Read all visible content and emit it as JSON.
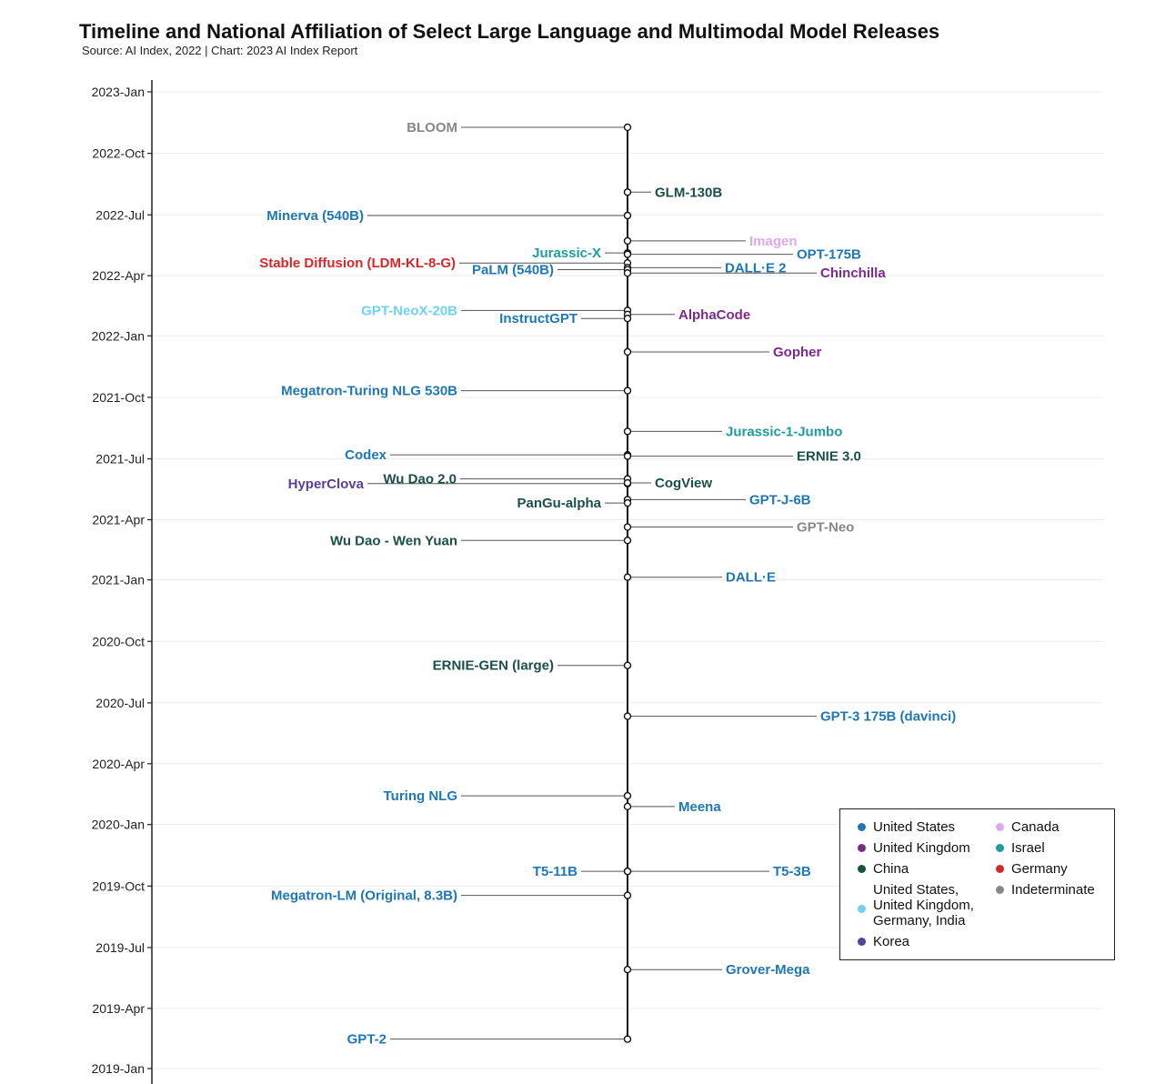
{
  "title": "Timeline and National Affiliation of Select Large Language and Multimodal Model Releases",
  "subtitle": "Source: AI Index, 2022 | Chart: 2023 AI Index Report",
  "colors": {
    "United States": "#1f77b4",
    "United Kingdom": "#7b2a8c",
    "China": "#1b4f4a",
    "Multinational": "#6fd3f0",
    "Korea": "#5a3f99",
    "Canada": "#e0a8ec",
    "Israel": "#1f9d9a",
    "Germany": "#d62728",
    "Indeterminate": "#888888"
  },
  "legend": {
    "items": [
      {
        "label": "United States",
        "color": "#1f77b4"
      },
      {
        "label": "United Kingdom",
        "color": "#7b2a8c"
      },
      {
        "label": "China",
        "color": "#1b4f4a"
      },
      {
        "label": "United States, United Kingdom, Germany, India",
        "color": "#6fd3f0"
      },
      {
        "label": "Korea",
        "color": "#5a3f99"
      },
      {
        "label": "Canada",
        "color": "#e0a8ec"
      },
      {
        "label": "Israel",
        "color": "#1f9d9a"
      },
      {
        "label": "Germany",
        "color": "#d62728"
      },
      {
        "label": "Indeterminate",
        "color": "#888888"
      }
    ]
  },
  "chart_data": {
    "type": "scatter",
    "title": "Timeline and National Affiliation of Select Large Language and Multimodal Model Releases",
    "subtitle": "Source: AI Index, 2022 | Chart: 2023 AI Index Report",
    "xlabel": "",
    "ylabel": "",
    "y_ticks": [
      "2023-Jan",
      "2022-Oct",
      "2022-Jul",
      "2022-Apr",
      "2022-Jan",
      "2021-Oct",
      "2021-Jul",
      "2021-Apr",
      "2021-Jan",
      "2020-Oct",
      "2020-Jul",
      "2020-Apr",
      "2020-Jan",
      "2019-Oct",
      "2019-Jul",
      "2019-Apr",
      "2019-Jan"
    ],
    "ylim": [
      "2019-01",
      "2023-01"
    ],
    "grid": true,
    "legend_position": "bottom-right",
    "points": [
      {
        "name": "BLOOM",
        "date": "2022-11-09",
        "country": "Indeterminate",
        "side": "left",
        "tail": 183
      },
      {
        "name": "GLM-130B",
        "date": "2022-08-04",
        "country": "China",
        "side": "right",
        "tail": 26
      },
      {
        "name": "Minerva (540B)",
        "date": "2022-06-30",
        "country": "United States",
        "side": "left",
        "tail": 286
      },
      {
        "name": "Imagen",
        "date": "2022-05-23",
        "country": "Canada",
        "side": "right",
        "tail": 130
      },
      {
        "name": "Jurassic-X",
        "date": "2022-05-05",
        "country": "Israel",
        "side": "left",
        "tail": 25
      },
      {
        "name": "OPT-175B",
        "date": "2022-05-03",
        "country": "United States",
        "side": "right",
        "tail": 182
      },
      {
        "name": "Stable Diffusion (LDM-KL-8-G)",
        "date": "2022-04-20",
        "country": "Germany",
        "side": "left",
        "tail": 185
      },
      {
        "name": "DALL·E 2",
        "date": "2022-04-13",
        "country": "United States",
        "side": "right",
        "tail": 103
      },
      {
        "name": "PaLM (540B)",
        "date": "2022-04-10",
        "country": "United States",
        "side": "left",
        "tail": 77
      },
      {
        "name": "Chinchilla",
        "date": "2022-04-05",
        "country": "United Kingdom",
        "side": "right",
        "tail": 208
      },
      {
        "name": "GPT-NeoX-20B",
        "date": "2022-02-08",
        "country": "Multinational",
        "side": "left",
        "tail": 183
      },
      {
        "name": "AlphaCode",
        "date": "2022-02-02",
        "country": "United Kingdom",
        "side": "right",
        "tail": 52
      },
      {
        "name": "InstructGPT",
        "date": "2022-01-27",
        "country": "United States",
        "side": "left",
        "tail": 51
      },
      {
        "name": "Gopher",
        "date": "2021-12-08",
        "country": "United Kingdom",
        "side": "right",
        "tail": 156
      },
      {
        "name": "Megatron-Turing NLG 530B",
        "date": "2021-10-11",
        "country": "United States",
        "side": "left",
        "tail": 183
      },
      {
        "name": "Jurassic-1-Jumbo",
        "date": "2021-08-11",
        "country": "Israel",
        "side": "right",
        "tail": 104
      },
      {
        "name": "Codex",
        "date": "2021-07-07",
        "country": "United States",
        "side": "left",
        "tail": 261
      },
      {
        "name": "ERNIE 3.0",
        "date": "2021-07-05",
        "country": "China",
        "side": "right",
        "tail": 182
      },
      {
        "name": "Wu Dao 2.0",
        "date": "2021-06-01",
        "country": "China",
        "side": "left",
        "tail": 184
      },
      {
        "name": "HyperClova",
        "date": "2021-05-25",
        "country": "Korea",
        "side": "left",
        "tail": 286
      },
      {
        "name": "CogView",
        "date": "2021-05-26",
        "country": "China",
        "side": "right",
        "tail": 26
      },
      {
        "name": "GPT-J-6B",
        "date": "2021-05-01",
        "country": "United States",
        "side": "right",
        "tail": 130
      },
      {
        "name": "PanGu-alpha",
        "date": "2021-04-26",
        "country": "China",
        "side": "left",
        "tail": 25
      },
      {
        "name": "GPT-Neo",
        "date": "2021-03-21",
        "country": "Indeterminate",
        "side": "right",
        "tail": 182
      },
      {
        "name": "Wu Dao - Wen Yuan",
        "date": "2021-03-01",
        "country": "China",
        "side": "left",
        "tail": 183
      },
      {
        "name": "DALL·E",
        "date": "2021-01-05",
        "country": "United States",
        "side": "right",
        "tail": 104
      },
      {
        "name": "ERNIE-GEN (large)",
        "date": "2020-08-26",
        "country": "China",
        "side": "left",
        "tail": 77
      },
      {
        "name": "GPT-3 175B (davinci)",
        "date": "2020-06-11",
        "country": "United States",
        "side": "right",
        "tail": 208
      },
      {
        "name": "Turing NLG",
        "date": "2020-02-13",
        "country": "United States",
        "side": "left",
        "tail": 183
      },
      {
        "name": "Meena",
        "date": "2020-01-28",
        "country": "United States",
        "side": "right",
        "tail": 52
      },
      {
        "name": "T5-11B",
        "date": "2019-10-23",
        "country": "United States",
        "side": "left",
        "tail": 51
      },
      {
        "name": "T5-3B",
        "date": "2019-10-23",
        "country": "United States",
        "side": "right",
        "tail": 156
      },
      {
        "name": "Megatron-LM (Original, 8.3B)",
        "date": "2019-09-17",
        "country": "United States",
        "side": "left",
        "tail": 183
      },
      {
        "name": "Grover-Mega",
        "date": "2019-05-29",
        "country": "United States",
        "side": "right",
        "tail": 104
      },
      {
        "name": "GPT-2",
        "date": "2019-02-14",
        "country": "United States",
        "side": "left",
        "tail": 261
      }
    ]
  }
}
